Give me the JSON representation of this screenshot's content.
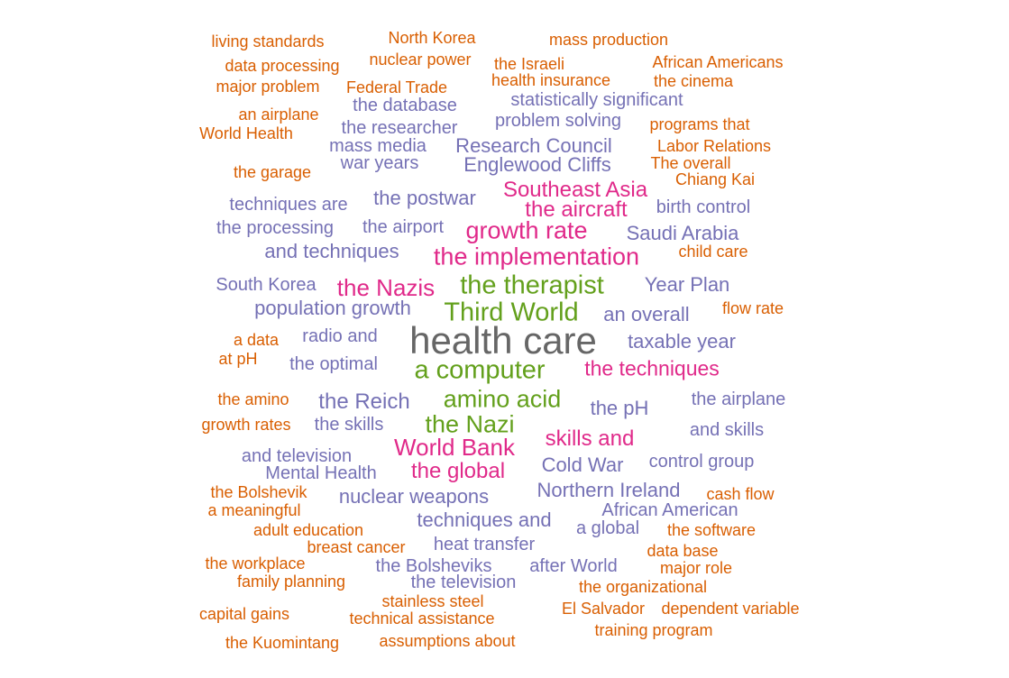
{
  "chart_data": {
    "type": "wordcloud",
    "color_tiers": {
      "tier1": "#666666",
      "tier2": "#63a01c",
      "tier3": "#e02a8a",
      "tier4": "#7571b5",
      "tier5": "#d95f02"
    },
    "words": [
      {
        "text": "health care",
        "tier": "tier1"
      },
      {
        "text": "the therapist",
        "tier": "tier2"
      },
      {
        "text": "Third World",
        "tier": "tier2"
      },
      {
        "text": "a computer",
        "tier": "tier2"
      },
      {
        "text": "amino acid",
        "tier": "tier2"
      },
      {
        "text": "the Nazi",
        "tier": "tier2"
      },
      {
        "text": "Southeast Asia",
        "tier": "tier3"
      },
      {
        "text": "the aircraft",
        "tier": "tier3"
      },
      {
        "text": "growth rate",
        "tier": "tier3"
      },
      {
        "text": "the implementation",
        "tier": "tier3"
      },
      {
        "text": "the Nazis",
        "tier": "tier3"
      },
      {
        "text": "the techniques",
        "tier": "tier3"
      },
      {
        "text": "World Bank",
        "tier": "tier3"
      },
      {
        "text": "skills and",
        "tier": "tier3"
      },
      {
        "text": "the global",
        "tier": "tier3"
      },
      {
        "text": "the database",
        "tier": "tier4"
      },
      {
        "text": "statistically significant",
        "tier": "tier4"
      },
      {
        "text": "problem solving",
        "tier": "tier4"
      },
      {
        "text": "the researcher",
        "tier": "tier4"
      },
      {
        "text": "mass media",
        "tier": "tier4"
      },
      {
        "text": "Research Council",
        "tier": "tier4"
      },
      {
        "text": "war years",
        "tier": "tier4"
      },
      {
        "text": "Englewood Cliffs",
        "tier": "tier4"
      },
      {
        "text": "techniques are",
        "tier": "tier4"
      },
      {
        "text": "the postwar",
        "tier": "tier4"
      },
      {
        "text": "birth control",
        "tier": "tier4"
      },
      {
        "text": "the processing",
        "tier": "tier4"
      },
      {
        "text": "the airport",
        "tier": "tier4"
      },
      {
        "text": "Saudi Arabia",
        "tier": "tier4"
      },
      {
        "text": "and techniques",
        "tier": "tier4"
      },
      {
        "text": "South Korea",
        "tier": "tier4"
      },
      {
        "text": "Year Plan",
        "tier": "tier4"
      },
      {
        "text": "population growth",
        "tier": "tier4"
      },
      {
        "text": "an overall",
        "tier": "tier4"
      },
      {
        "text": "radio and",
        "tier": "tier4"
      },
      {
        "text": "taxable year",
        "tier": "tier4"
      },
      {
        "text": "the optimal",
        "tier": "tier4"
      },
      {
        "text": "the Reich",
        "tier": "tier4"
      },
      {
        "text": "the pH",
        "tier": "tier4"
      },
      {
        "text": "the airplane",
        "tier": "tier4"
      },
      {
        "text": "the skills",
        "tier": "tier4"
      },
      {
        "text": "and skills",
        "tier": "tier4"
      },
      {
        "text": "and television",
        "tier": "tier4"
      },
      {
        "text": "Cold War",
        "tier": "tier4"
      },
      {
        "text": "control group",
        "tier": "tier4"
      },
      {
        "text": "Mental Health",
        "tier": "tier4"
      },
      {
        "text": "nuclear weapons",
        "tier": "tier4"
      },
      {
        "text": "Northern Ireland",
        "tier": "tier4"
      },
      {
        "text": "African American",
        "tier": "tier4"
      },
      {
        "text": "techniques and",
        "tier": "tier4"
      },
      {
        "text": "a global",
        "tier": "tier4"
      },
      {
        "text": "heat transfer",
        "tier": "tier4"
      },
      {
        "text": "the Bolsheviks",
        "tier": "tier4"
      },
      {
        "text": "after World",
        "tier": "tier4"
      },
      {
        "text": "the television",
        "tier": "tier4"
      },
      {
        "text": "living standards",
        "tier": "tier5"
      },
      {
        "text": "North Korea",
        "tier": "tier5"
      },
      {
        "text": "mass production",
        "tier": "tier5"
      },
      {
        "text": "data processing",
        "tier": "tier5"
      },
      {
        "text": "nuclear power",
        "tier": "tier5"
      },
      {
        "text": "the Israeli",
        "tier": "tier5"
      },
      {
        "text": "African Americans",
        "tier": "tier5"
      },
      {
        "text": "health insurance",
        "tier": "tier5"
      },
      {
        "text": "major problem",
        "tier": "tier5"
      },
      {
        "text": "Federal Trade",
        "tier": "tier5"
      },
      {
        "text": "the cinema",
        "tier": "tier5"
      },
      {
        "text": "an airplane",
        "tier": "tier5"
      },
      {
        "text": "World Health",
        "tier": "tier5"
      },
      {
        "text": "programs that",
        "tier": "tier5"
      },
      {
        "text": "Labor Relations",
        "tier": "tier5"
      },
      {
        "text": "the garage",
        "tier": "tier5"
      },
      {
        "text": "The overall",
        "tier": "tier5"
      },
      {
        "text": "Chiang Kai",
        "tier": "tier5"
      },
      {
        "text": "child care",
        "tier": "tier5"
      },
      {
        "text": "flow rate",
        "tier": "tier5"
      },
      {
        "text": "a data",
        "tier": "tier5"
      },
      {
        "text": "at pH",
        "tier": "tier5"
      },
      {
        "text": "the amino",
        "tier": "tier5"
      },
      {
        "text": "growth rates",
        "tier": "tier5"
      },
      {
        "text": "the Bolshevik",
        "tier": "tier5"
      },
      {
        "text": "cash flow",
        "tier": "tier5"
      },
      {
        "text": "a meaningful",
        "tier": "tier5"
      },
      {
        "text": "adult education",
        "tier": "tier5"
      },
      {
        "text": "the software",
        "tier": "tier5"
      },
      {
        "text": "breast cancer",
        "tier": "tier5"
      },
      {
        "text": "data base",
        "tier": "tier5"
      },
      {
        "text": "the workplace",
        "tier": "tier5"
      },
      {
        "text": "major role",
        "tier": "tier5"
      },
      {
        "text": "family planning",
        "tier": "tier5"
      },
      {
        "text": "the organizational",
        "tier": "tier5"
      },
      {
        "text": "stainless steel",
        "tier": "tier5"
      },
      {
        "text": "capital gains",
        "tier": "tier5"
      },
      {
        "text": "El Salvador",
        "tier": "tier5"
      },
      {
        "text": "dependent variable",
        "tier": "tier5"
      },
      {
        "text": "technical assistance",
        "tier": "tier5"
      },
      {
        "text": "training program",
        "tier": "tier5"
      },
      {
        "text": "the Kuomintang",
        "tier": "tier5"
      },
      {
        "text": "assumptions about",
        "tier": "tier5"
      }
    ]
  }
}
